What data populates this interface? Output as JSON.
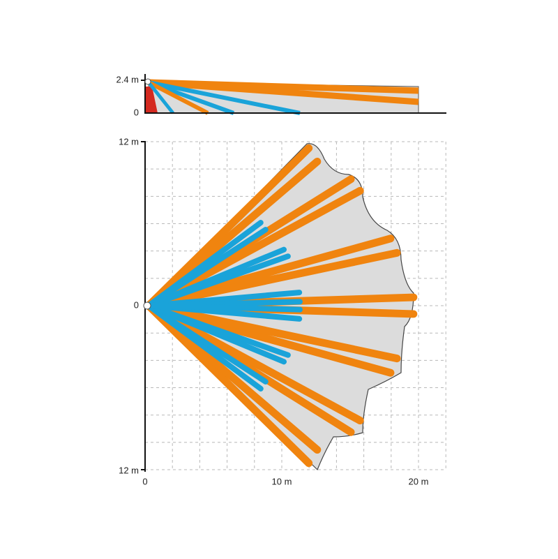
{
  "top_view": {
    "y_labels": [
      "2.4 m",
      "0"
    ]
  },
  "main_view": {
    "y_labels": [
      "12 m",
      "0",
      "12 m"
    ],
    "x_labels": [
      "0",
      "10 m",
      "20 m"
    ]
  }
}
